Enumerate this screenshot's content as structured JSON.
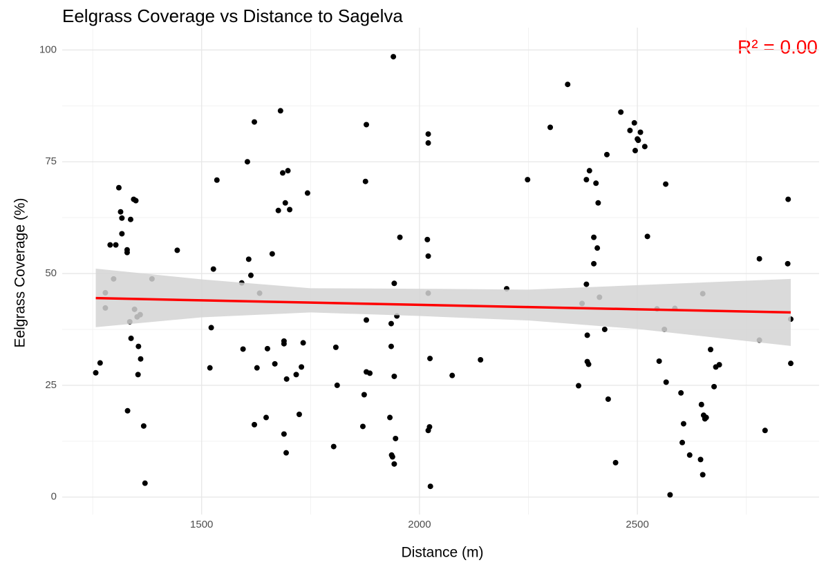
{
  "chart_data": {
    "type": "scatter",
    "title": "Eelgrass Coverage vs Distance to Sagelva",
    "x_label": "Distance (m)",
    "y_label": "Eelgrass Coverage (%)",
    "annotation": "R² = 0.00",
    "annotation_color": "#ff0000",
    "color": "#000000",
    "grid": true,
    "xlim": [
      1180,
      2917
    ],
    "ylim": [
      -3.9,
      105
    ],
    "xticks": [
      1500,
      2000,
      2500
    ],
    "yticks": [
      0,
      25,
      50,
      75,
      100
    ],
    "x_minor_ticks": [
      1250,
      1750,
      2250,
      2750
    ],
    "y_minor_ticks": [
      12.5,
      37.5,
      62.5,
      87.5
    ],
    "x": [
      1257,
      1267,
      1279,
      1279,
      1290,
      1298,
      1303,
      1310,
      1314,
      1317,
      1317,
      1329,
      1329,
      1330,
      1335,
      1337,
      1338,
      1344,
      1346,
      1349,
      1352,
      1354,
      1355,
      1359,
      1360,
      1367,
      1370,
      1386,
      1444,
      1519,
      1522,
      1527,
      1535,
      1592,
      1595,
      1605,
      1608,
      1613,
      1621,
      1621,
      1627,
      1633,
      1648,
      1651,
      1662,
      1668,
      1676,
      1681,
      1686,
      1689,
      1689,
      1689,
      1692,
      1694,
      1695,
      1698,
      1702,
      1717,
      1724,
      1729,
      1733,
      1743,
      1803,
      1808,
      1811,
      1870,
      1873,
      1876,
      1878,
      1878,
      1878,
      1886,
      1932,
      1935,
      1935,
      1936,
      1938,
      1942,
      1940,
      1942,
      1942,
      1945,
      1948,
      1955,
      2020,
      2020,
      2018,
      2020,
      2020,
      2024,
      2023,
      2020,
      2025,
      2075,
      2140,
      2200,
      2248,
      2300,
      2340,
      2365,
      2373,
      2383,
      2383,
      2385,
      2385,
      2388,
      2390,
      2400,
      2400,
      2405,
      2408,
      2410,
      2413,
      2425,
      2430,
      2433,
      2450,
      2462,
      2483,
      2493,
      2495,
      2500,
      2502,
      2507,
      2517,
      2523,
      2545,
      2550,
      2562,
      2565,
      2566,
      2575,
      2586,
      2600,
      2603,
      2606,
      2620,
      2645,
      2647,
      2650,
      2650,
      2652,
      2655,
      2658,
      2668,
      2676,
      2680,
      2688,
      2780,
      2780,
      2793,
      2845,
      2846,
      2852,
      2852
    ],
    "values": [
      27.8,
      30.0,
      45.7,
      42.3,
      56.4,
      48.8,
      56.4,
      69.2,
      63.8,
      62.4,
      58.9,
      55.3,
      54.7,
      19.3,
      39.2,
      62.1,
      35.5,
      66.6,
      42.0,
      66.3,
      40.3,
      27.4,
      33.7,
      40.8,
      30.9,
      15.9,
      3.1,
      48.8,
      55.2,
      28.9,
      37.9,
      51.0,
      70.9,
      47.9,
      33.1,
      75.0,
      53.2,
      49.6,
      16.2,
      83.9,
      28.9,
      45.6,
      17.8,
      33.2,
      54.4,
      29.8,
      64.1,
      86.4,
      72.5,
      34.9,
      34.3,
      14.1,
      65.8,
      9.9,
      26.4,
      73.0,
      64.3,
      27.4,
      18.5,
      29.1,
      34.5,
      68.0,
      11.3,
      33.5,
      25.0,
      15.8,
      22.9,
      70.6,
      83.3,
      39.6,
      28.0,
      27.7,
      17.8,
      38.8,
      33.7,
      9.4,
      9.0,
      7.4,
      98.5,
      47.8,
      27.0,
      13.1,
      40.5,
      58.1,
      81.2,
      79.2,
      57.6,
      53.9,
      45.6,
      31.0,
      15.7,
      14.9,
      2.4,
      27.2,
      30.7,
      46.6,
      71.0,
      82.7,
      92.3,
      24.9,
      43.3,
      47.6,
      71.0,
      36.2,
      30.3,
      29.7,
      73.0,
      58.1,
      52.2,
      70.2,
      55.7,
      65.8,
      44.7,
      37.5,
      76.6,
      21.9,
      7.7,
      86.1,
      82.0,
      83.7,
      77.5,
      80.1,
      79.8,
      81.6,
      78.4,
      58.3,
      42.1,
      30.4,
      37.5,
      70.0,
      25.7,
      0.5,
      42.2,
      23.3,
      12.2,
      16.4,
      9.4,
      8.4,
      20.7,
      45.5,
      5.0,
      18.3,
      17.5,
      17.8,
      33.0,
      24.7,
      29.1,
      29.6,
      53.3,
      35.1,
      14.9,
      52.2,
      66.6,
      39.8,
      29.9
    ],
    "fit": {
      "color": "#ff0000",
      "band_color": "#d3d3d3",
      "x": [
        1257,
        1500,
        1750,
        2000,
        2250,
        2500,
        2852
      ],
      "y": [
        44.5,
        44.0,
        43.5,
        43.0,
        42.5,
        42.0,
        41.3
      ],
      "lower": [
        38.0,
        40.2,
        41.3,
        40.5,
        39.5,
        37.6,
        33.8
      ],
      "upper": [
        51.1,
        48.7,
        46.7,
        46.6,
        46.4,
        47.4,
        48.8
      ]
    }
  }
}
